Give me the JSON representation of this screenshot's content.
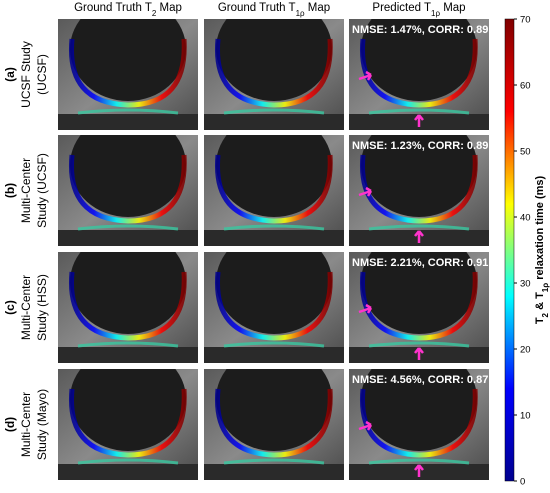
{
  "figure": {
    "columns": [
      {
        "text": "Ground Truth T",
        "sub": "2",
        "tail": " Map"
      },
      {
        "text": "Ground Truth T",
        "sub": "1ρ",
        "tail": " Map"
      },
      {
        "text": "Predicted T",
        "sub": "1ρ",
        "tail": " Map"
      }
    ],
    "rows": [
      {
        "letter": "(a)",
        "line1": "UCSF Study",
        "line2": "(UCSF)",
        "annotation": "NMSE: 1.47%, CORR: 0.89"
      },
      {
        "letter": "(b)",
        "line1": "Multi-Center",
        "line2": "Study (UCSF)",
        "annotation": "NMSE: 1.23%, CORR: 0.89"
      },
      {
        "letter": "(c)",
        "line1": "Multi-Center",
        "line2": "Study (HSS)",
        "annotation": "NMSE: 2.21%, CORR: 0.91"
      },
      {
        "letter": "(d)",
        "line1": "Multi-Center",
        "line2": "Study (Mayo)",
        "annotation": "NMSE: 4.56%, CORR: 0.87"
      }
    ],
    "colorbar": {
      "label": [
        {
          "text": "T"
        },
        {
          "text": "2",
          "sub": true
        },
        {
          "text": " & T"
        },
        {
          "text": "1ρ",
          "sub": true
        },
        {
          "text": " relaxation time (ms)"
        }
      ],
      "lim": [
        0,
        70
      ],
      "ticks": [
        0,
        10,
        20,
        30,
        40,
        50,
        60,
        70
      ],
      "colormap": [
        "#00008f",
        "#0000ff",
        "#00ffff",
        "#ffff00",
        "#ff0000",
        "#800000"
      ]
    }
  }
}
